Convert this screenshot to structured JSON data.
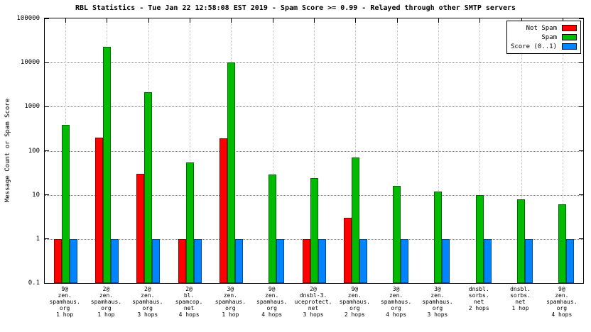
{
  "chart_data": {
    "type": "bar",
    "title": "RBL Statistics - Tue Jan 22 12:58:08 EST 2019 - Spam Score >= 0.99 - Relayed through other SMTP servers",
    "ylabel": "Message Count or Spam Score",
    "yscale": "log",
    "ylim": [
      0.1,
      100000
    ],
    "ytick_labels": [
      "0.1",
      "1",
      "10",
      "100",
      "1000",
      "10000",
      "100000"
    ],
    "grid": true,
    "legend_position": "top-right-inside",
    "categories": [
      [
        "9@",
        "zen.",
        "spamhaus.",
        "org",
        "1 hop"
      ],
      [
        "2@",
        "zen.",
        "spamhaus.",
        "org",
        "1 hop"
      ],
      [
        "2@",
        "zen.",
        "spamhaus.",
        "org",
        "3 hops"
      ],
      [
        "2@",
        "bl.",
        "spamcop.",
        "net",
        "4 hops"
      ],
      [
        "3@",
        "zen.",
        "spamhaus.",
        "org",
        "1 hop"
      ],
      [
        "9@",
        "zen.",
        "spamhaus.",
        "org",
        "4 hops"
      ],
      [
        "2@",
        "dnsbl-3.",
        "uceprotect.",
        "net",
        "3 hops"
      ],
      [
        "9@",
        "zen.",
        "spamhaus.",
        "org",
        "2 hops"
      ],
      [
        "3@",
        "zen.",
        "spamhaus.",
        "org",
        "4 hops"
      ],
      [
        "3@",
        "zen.",
        "spamhaus.",
        "org",
        "3 hops"
      ],
      [
        "dnsbl.",
        "sorbs.",
        "net",
        "2 hops"
      ],
      [
        "dnsbl.",
        "sorbs.",
        "net",
        "1 hop"
      ],
      [
        "9@",
        "zen.",
        "spamhaus.",
        "org",
        "4 hops"
      ]
    ],
    "series": [
      {
        "name": "Not Spam",
        "color": "#ff0000",
        "values": [
          1,
          200,
          30,
          1,
          190,
          null,
          1,
          3,
          null,
          null,
          null,
          null,
          null
        ]
      },
      {
        "name": "Spam",
        "color": "#00bb00",
        "values": [
          380,
          23000,
          2100,
          55,
          10000,
          29,
          24,
          70,
          16,
          12,
          10,
          8,
          6
        ]
      },
      {
        "name": "Score (0..1)",
        "color": "#0084ff",
        "values": [
          1,
          1,
          1,
          1,
          1,
          1,
          1,
          1,
          1,
          1,
          1,
          1,
          1
        ]
      }
    ]
  }
}
